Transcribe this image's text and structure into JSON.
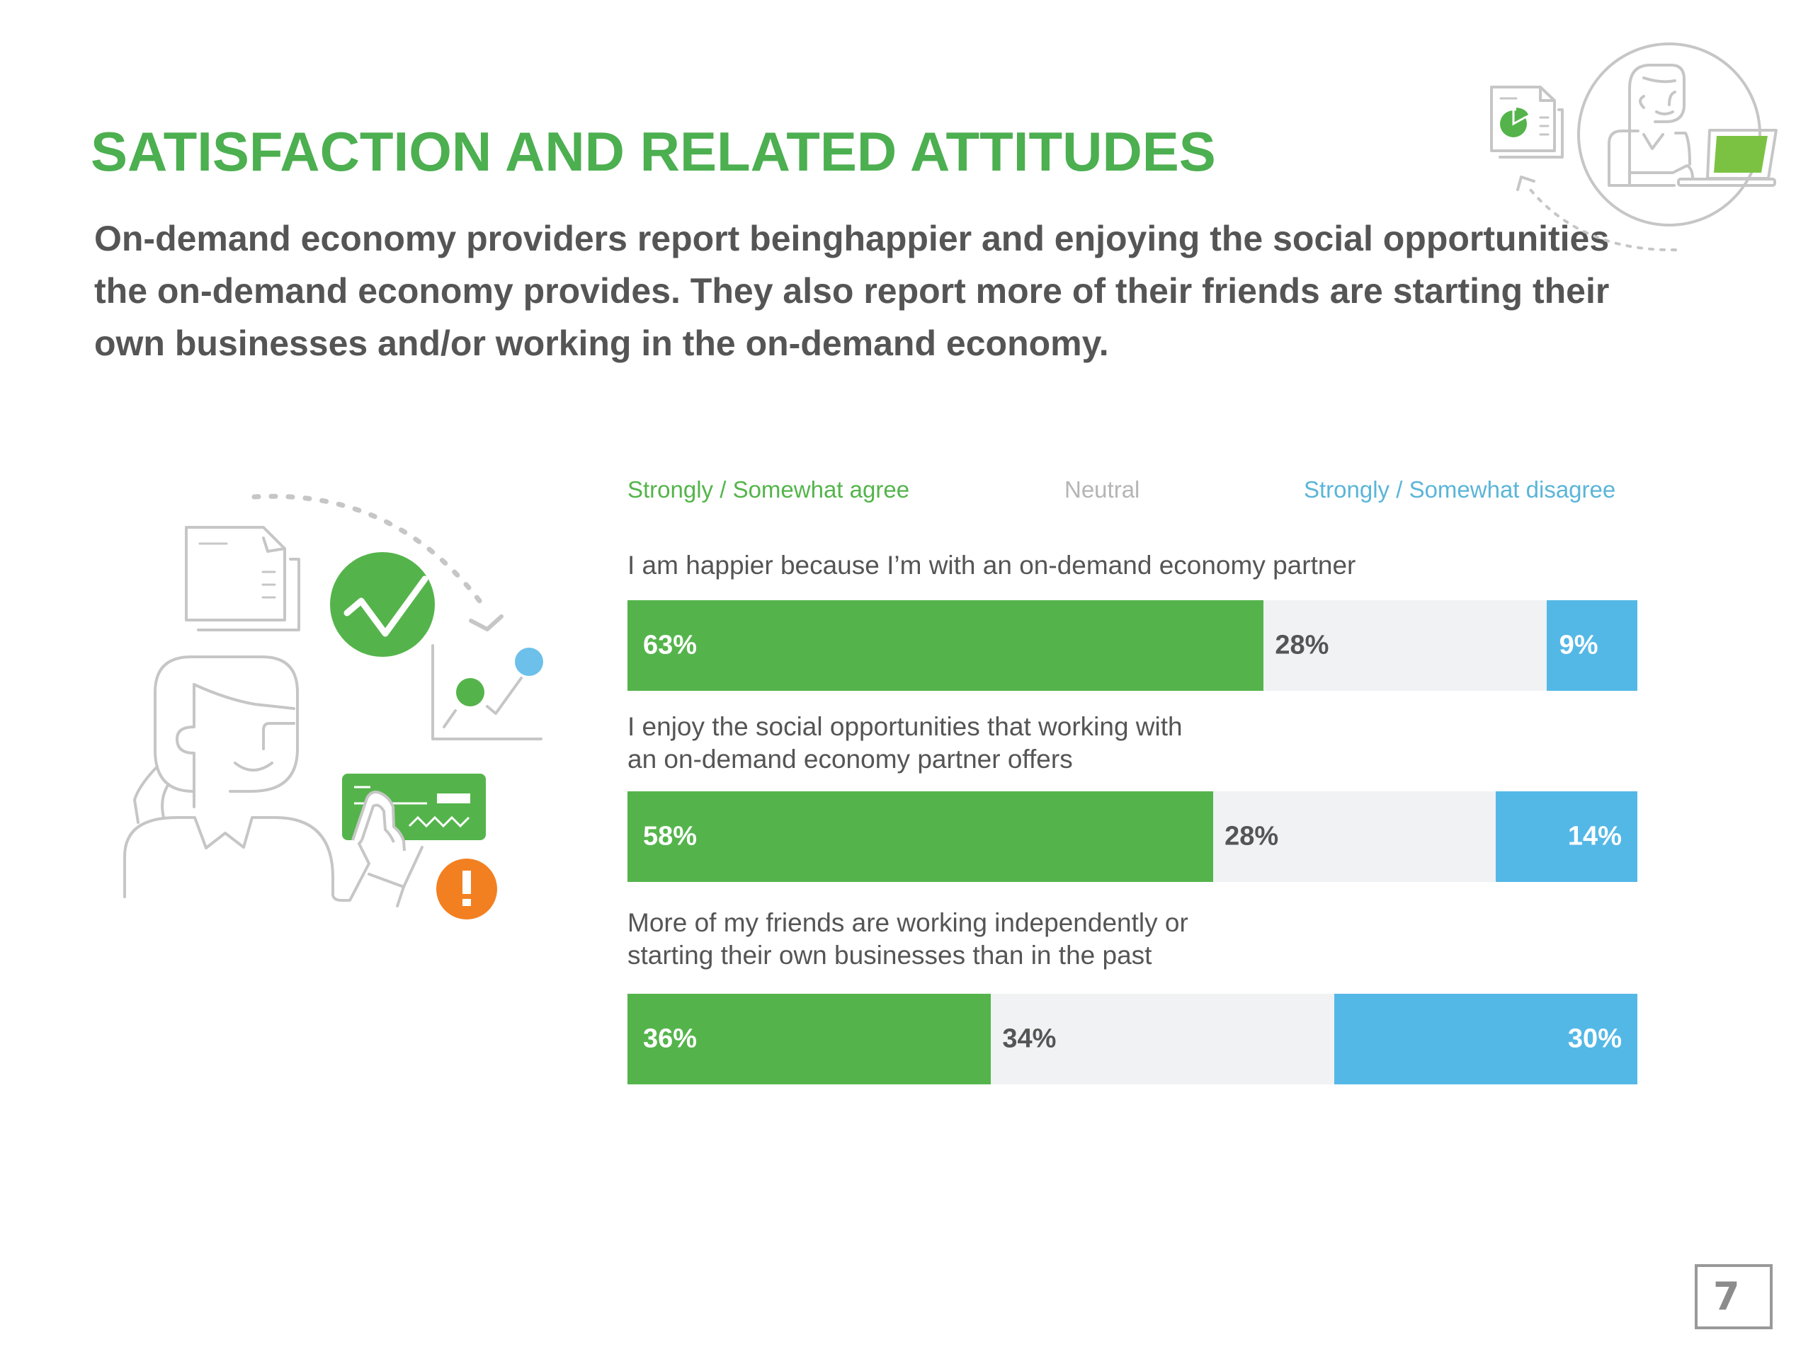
{
  "header": {
    "title": "SATISFACTION AND RELATED ATTITUDES",
    "subtitle": "On-demand economy providers report beinghappier and enjoying the social opportunities the on-demand economy provides. They also report more of their friends are starting their own businesses and/or working in the on-demand economy."
  },
  "colors": {
    "title": "#4caf50",
    "agree": "#54b44b",
    "neutral": "#f0f2f3",
    "disagree": "#54b8e6",
    "text": "#555555",
    "legend_neutral": "#b5b5b5",
    "legend_disagree": "#5bb5d8",
    "illustration_line": "#c4c4c4",
    "alert": "#f28021"
  },
  "chart_data": {
    "type": "bar",
    "orientation": "horizontal-stacked-100",
    "legend_position": "top",
    "legend": [
      "Strongly / Somewhat agree",
      "Neutral",
      "Strongly / Somewhat disagree"
    ],
    "categories": [
      "I am happier because I’m with an on-demand economy partner",
      "I enjoy the social opportunities that working with an on-demand economy partner offers",
      "More of my friends are working independently or starting their own businesses than in the past"
    ],
    "category_lines": [
      [
        "I am happier because I’m with an on-demand economy partner"
      ],
      [
        "I enjoy the social opportunities that working with",
        "an on-demand economy partner offers"
      ],
      [
        "More of my friends are working independently or",
        "starting their own businesses than in the past"
      ]
    ],
    "series": [
      {
        "name": "Strongly / Somewhat agree",
        "values": [
          63,
          58,
          36
        ],
        "labels": [
          "63%",
          "58%",
          "36%"
        ]
      },
      {
        "name": "Neutral",
        "values": [
          28,
          28,
          34
        ],
        "labels": [
          "28%",
          "28%",
          "34%"
        ]
      },
      {
        "name": "Strongly / Somewhat disagree",
        "values": [
          9,
          14,
          30
        ],
        "labels": [
          "9%",
          "14%",
          "30%"
        ]
      }
    ],
    "xlim": [
      0,
      100
    ],
    "unit": "%"
  },
  "illustrations": {
    "top_right": [
      "report-pie-icon",
      "person-at-laptop-icon",
      "dotted-arrow-icon"
    ],
    "left": [
      "report-pie-icon",
      "checkmark-circle-icon",
      "growth-chart-icon",
      "person-icon",
      "payment-card-icon",
      "alert-icon",
      "dotted-arrow-icon"
    ]
  },
  "footer": {
    "page_number": "7"
  }
}
